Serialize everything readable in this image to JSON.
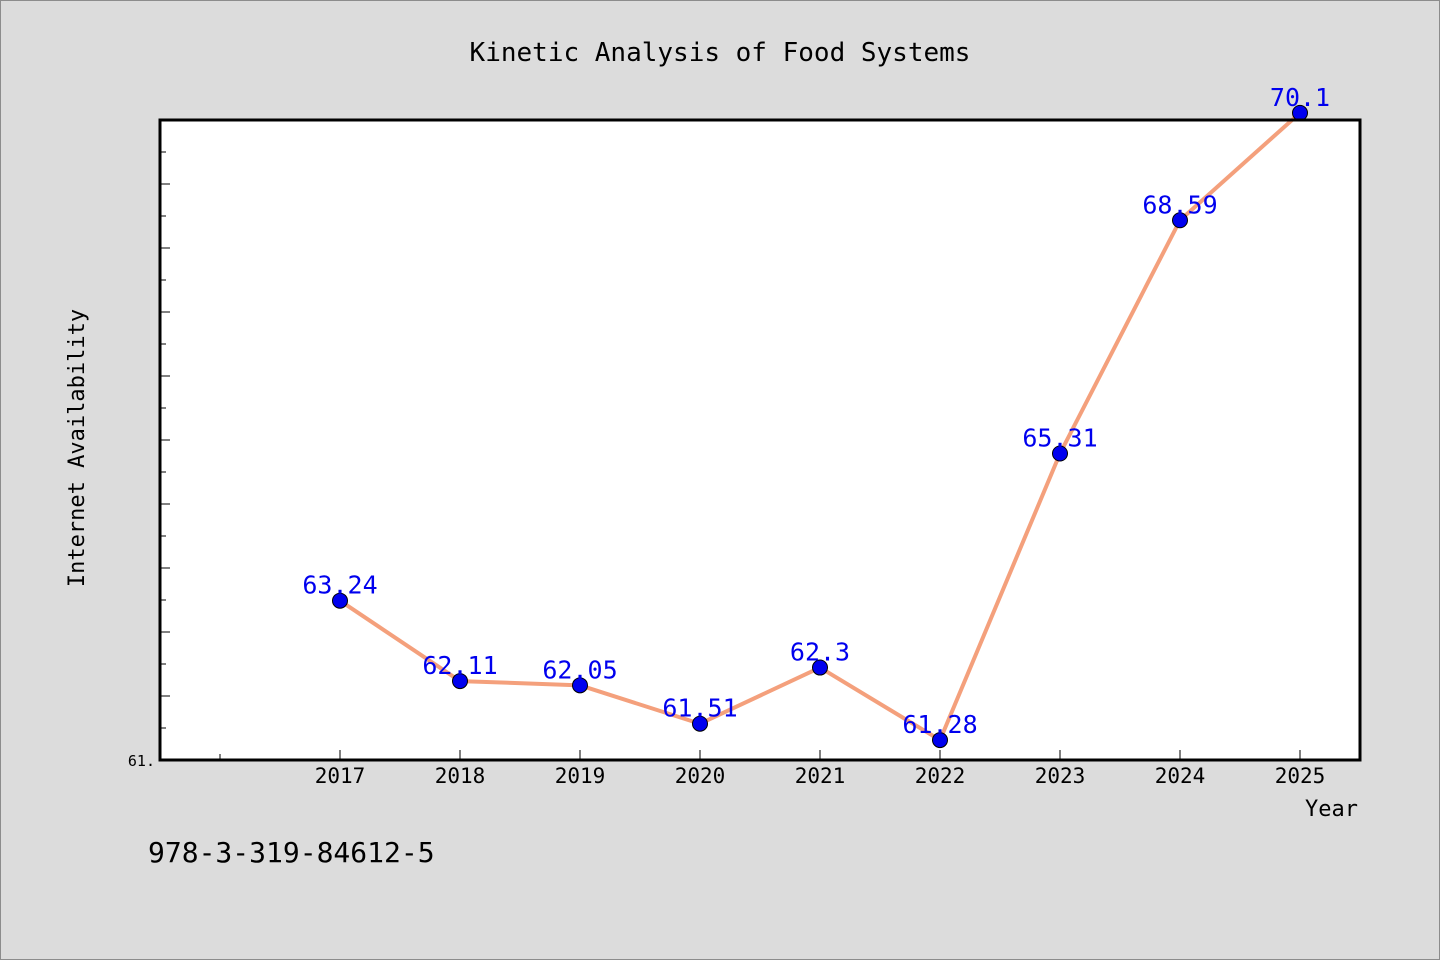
{
  "colors": {
    "background": "#dcdcdc",
    "plot_background": "#ffffff",
    "line": "#f4a07c",
    "marker": "#0000ee",
    "data_label": "#0000ee"
  },
  "footer": {
    "text": "978-3-319-84612-5"
  },
  "chart_data": {
    "type": "line",
    "title": "Kinetic Analysis of Food Systems",
    "xlabel": "Year",
    "ylabel": "Internet Availability",
    "ylim": [
      61.0,
      70.0
    ],
    "y_tick_label": "61.",
    "y_tick_label_value": 61.0,
    "x": [
      "2017",
      "2018",
      "2019",
      "2020",
      "2021",
      "2022",
      "2023",
      "2024",
      "2025"
    ],
    "series": [
      {
        "values": [
          63.24,
          62.11,
          62.05,
          61.51,
          62.3,
          61.28,
          65.31,
          68.59,
          70.1
        ],
        "labels": [
          "63.24",
          "62.11",
          "62.05",
          "61.51",
          "62.3",
          "61.28",
          "65.31",
          "68.59",
          "70.1"
        ]
      }
    ],
    "grid": false,
    "legend": "none"
  }
}
